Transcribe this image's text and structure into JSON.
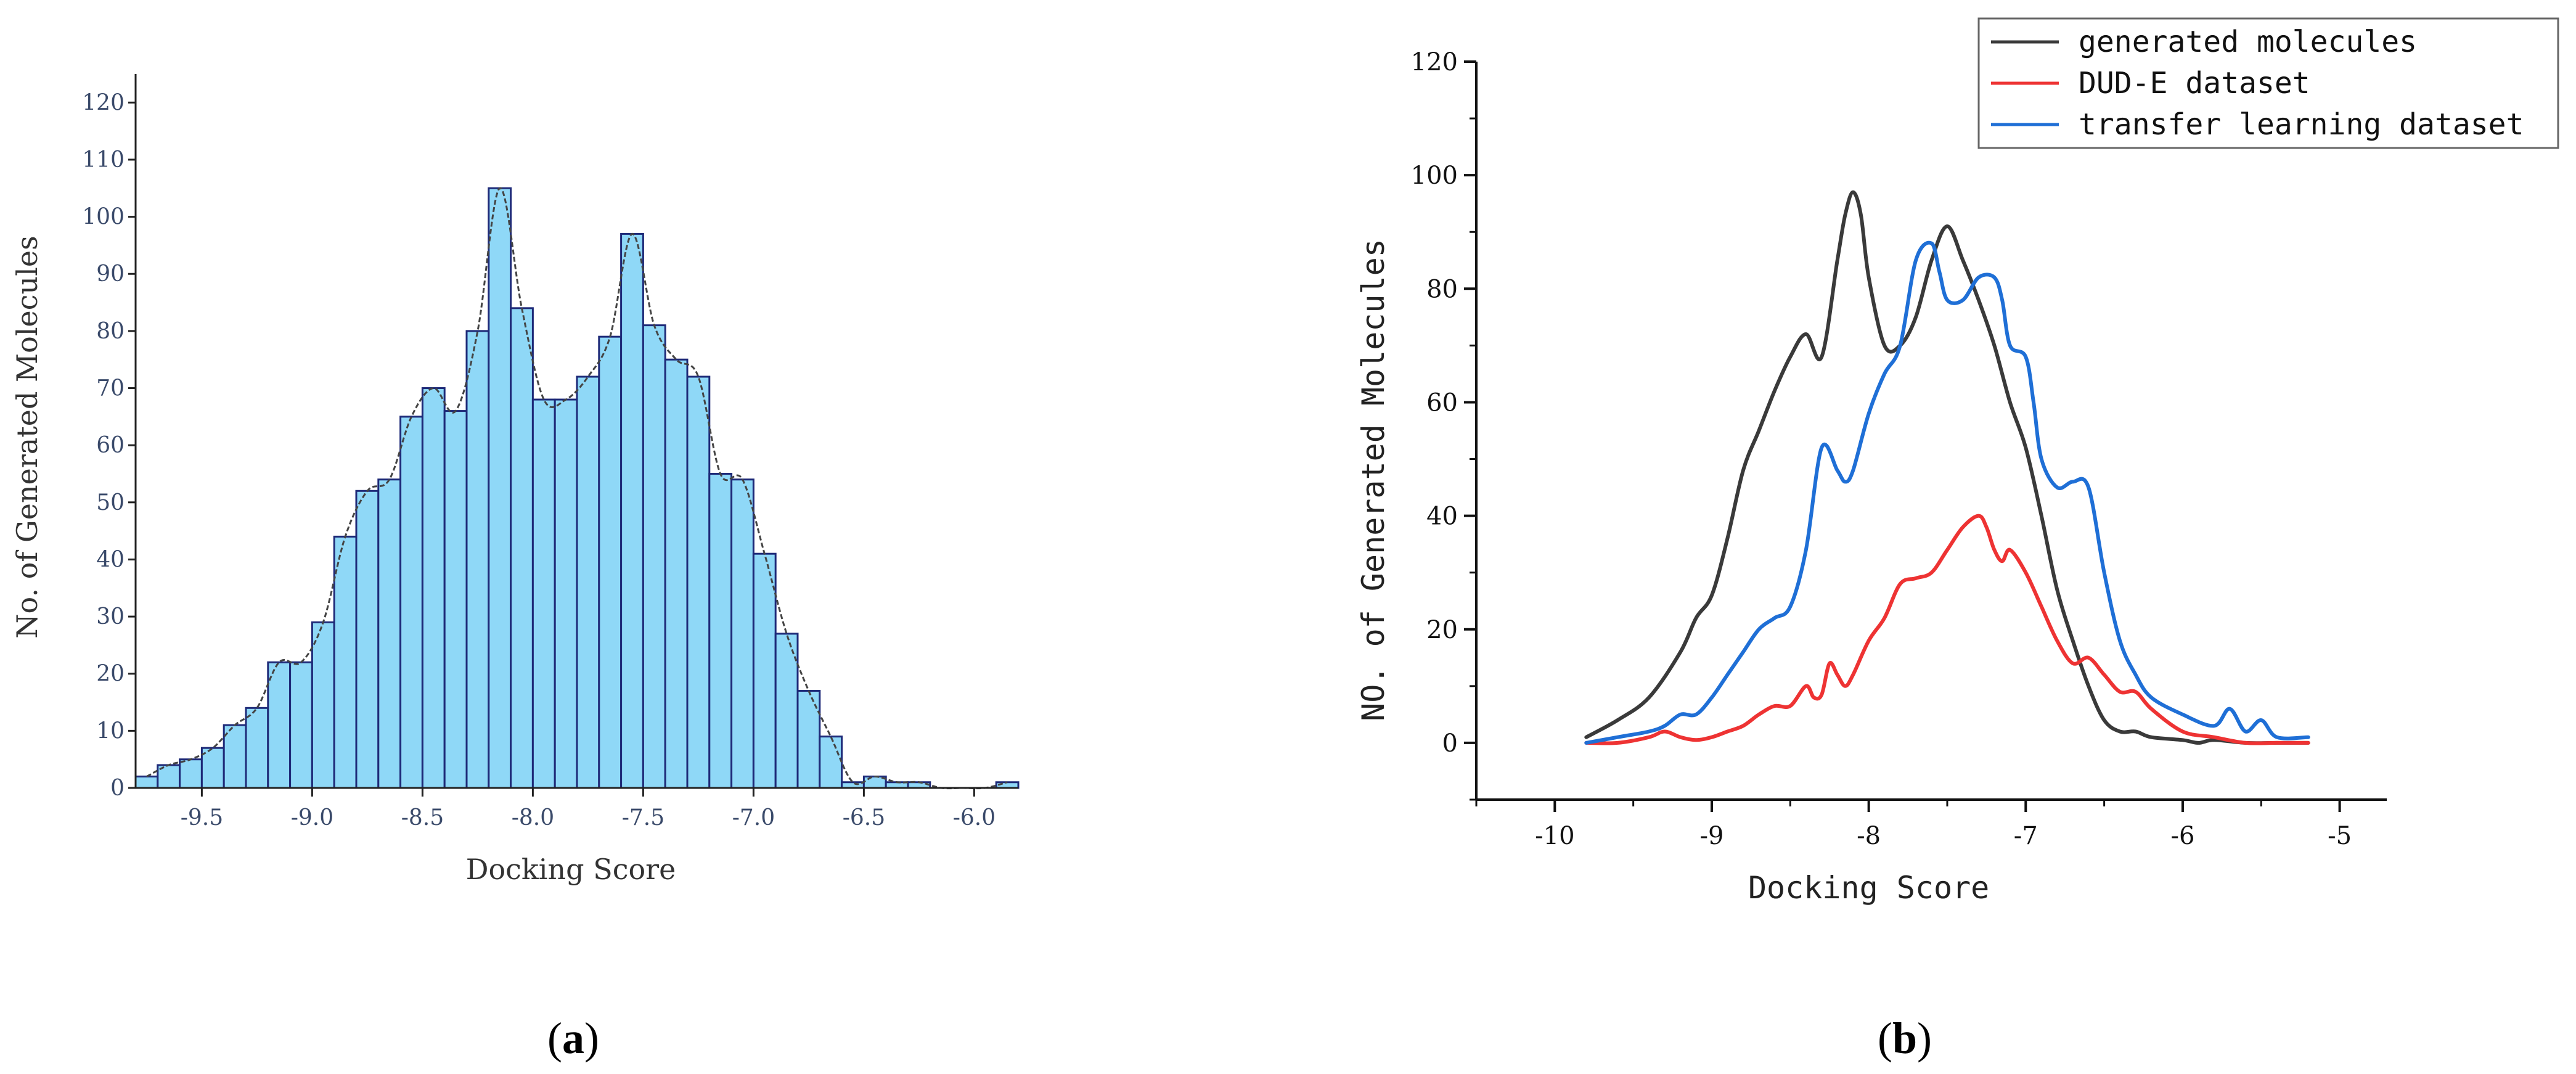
{
  "chart_data": [
    {
      "panel": "a",
      "type": "bar",
      "xlabel": "Docking Score",
      "ylabel": "No. of Generated Molecules",
      "xlim": [
        -9.8,
        -5.8
      ],
      "ylim": [
        0,
        125
      ],
      "xticks": [
        -9.5,
        -9.0,
        -8.5,
        -8.0,
        -7.5,
        -7.0,
        -6.5,
        -6.0
      ],
      "xtick_labels": [
        "-9.5",
        "-9.0",
        "-8.5",
        "-8.0",
        "-7.5",
        "-7.0",
        "-6.5",
        "-6.0"
      ],
      "yticks": [
        0,
        10,
        20,
        30,
        40,
        50,
        60,
        70,
        80,
        90,
        100,
        110,
        120
      ],
      "ytick_labels": [
        "0",
        "10",
        "20",
        "30",
        "40",
        "50",
        "60",
        "70",
        "80",
        "90",
        "100",
        "110",
        "120"
      ],
      "bin_width": 0.1,
      "bin_starts": [
        -9.8,
        -9.7,
        -9.6,
        -9.5,
        -9.4,
        -9.3,
        -9.2,
        -9.1,
        -9.0,
        -8.9,
        -8.8,
        -8.7,
        -8.6,
        -8.5,
        -8.4,
        -8.3,
        -8.2,
        -8.1,
        -8.0,
        -7.9,
        -7.8,
        -7.7,
        -7.6,
        -7.5,
        -7.4,
        -7.3,
        -7.2,
        -7.1,
        -7.0,
        -6.9,
        -6.8,
        -6.7,
        -6.6,
        -6.5,
        -6.4,
        -6.3,
        -6.2,
        -6.1,
        -6.0,
        -5.9
      ],
      "values": [
        2,
        4,
        5,
        7,
        11,
        14,
        22,
        22,
        29,
        44,
        52,
        54,
        65,
        70,
        66,
        80,
        105,
        84,
        68,
        68,
        72,
        79,
        97,
        81,
        75,
        72,
        55,
        54,
        41,
        27,
        17,
        9,
        1,
        2,
        1,
        1,
        0,
        0,
        0,
        1
      ],
      "fill_color": "#8fd8f7",
      "edge_color": "#1e2a78",
      "curve_color": "#444444"
    },
    {
      "panel": "b",
      "type": "line",
      "xlabel": "Docking Score",
      "ylabel": "NO. of Generated Molecules",
      "xlim": [
        -10.5,
        -4.7
      ],
      "ylim": [
        -10,
        120
      ],
      "xticks": [
        -10,
        -9,
        -8,
        -7,
        -6,
        -5
      ],
      "xtick_labels": [
        "-10",
        "-9",
        "-8",
        "-7",
        "-6",
        "-5"
      ],
      "yticks": [
        0,
        20,
        40,
        60,
        80,
        100,
        120
      ],
      "ytick_labels": [
        "0",
        "20",
        "40",
        "60",
        "80",
        "100",
        "120"
      ],
      "series": [
        {
          "name": "generated molecules",
          "color": "#3a3a3a",
          "x": [
            -9.8,
            -9.6,
            -9.4,
            -9.2,
            -9.1,
            -9.0,
            -8.9,
            -8.8,
            -8.7,
            -8.6,
            -8.5,
            -8.4,
            -8.3,
            -8.2,
            -8.15,
            -8.1,
            -8.05,
            -8.0,
            -7.9,
            -7.8,
            -7.7,
            -7.6,
            -7.5,
            -7.4,
            -7.3,
            -7.2,
            -7.1,
            -7.0,
            -6.9,
            -6.8,
            -6.7,
            -6.6,
            -6.5,
            -6.4,
            -6.3,
            -6.2,
            -6.0,
            -5.9,
            -5.8,
            -5.6,
            -5.4,
            -5.2
          ],
          "y": [
            1,
            4,
            8,
            16,
            22,
            26,
            36,
            48,
            55,
            62,
            68,
            72,
            68,
            85,
            93,
            97,
            93,
            82,
            70,
            70,
            75,
            85,
            91,
            85,
            78,
            70,
            60,
            52,
            40,
            27,
            18,
            10,
            4,
            2,
            2,
            1,
            0.5,
            0,
            0.5,
            0,
            0,
            0
          ]
        },
        {
          "name": "DUD-E dataset",
          "color": "#ee3333",
          "x": [
            -9.8,
            -9.6,
            -9.4,
            -9.3,
            -9.2,
            -9.1,
            -9.0,
            -8.9,
            -8.8,
            -8.7,
            -8.6,
            -8.5,
            -8.4,
            -8.35,
            -8.3,
            -8.25,
            -8.2,
            -8.15,
            -8.1,
            -8.0,
            -7.9,
            -7.8,
            -7.7,
            -7.6,
            -7.5,
            -7.4,
            -7.3,
            -7.25,
            -7.2,
            -7.15,
            -7.1,
            -7.0,
            -6.9,
            -6.8,
            -6.7,
            -6.6,
            -6.5,
            -6.4,
            -6.3,
            -6.2,
            -6.0,
            -5.8,
            -5.6,
            -5.4,
            -5.2
          ],
          "y": [
            0,
            0,
            1,
            2,
            1,
            0.5,
            1,
            2,
            3,
            5,
            6.5,
            6.5,
            10,
            8,
            8.5,
            14,
            12,
            10,
            12,
            18,
            22,
            28,
            29,
            30,
            34,
            38,
            40,
            38,
            34,
            32,
            34,
            30,
            24,
            18,
            14,
            15,
            12,
            9,
            9,
            6,
            2,
            1,
            0,
            0,
            0
          ]
        },
        {
          "name": "transfer learning dataset",
          "color": "#1f6fd6",
          "x": [
            -9.8,
            -9.6,
            -9.4,
            -9.3,
            -9.2,
            -9.1,
            -9.0,
            -8.9,
            -8.8,
            -8.7,
            -8.6,
            -8.5,
            -8.4,
            -8.3,
            -8.2,
            -8.15,
            -8.1,
            -8.0,
            -7.9,
            -7.8,
            -7.7,
            -7.6,
            -7.55,
            -7.5,
            -7.4,
            -7.3,
            -7.2,
            -7.15,
            -7.1,
            -7.0,
            -6.95,
            -6.9,
            -6.8,
            -6.7,
            -6.6,
            -6.5,
            -6.4,
            -6.3,
            -6.2,
            -6.0,
            -5.8,
            -5.7,
            -5.6,
            -5.5,
            -5.4,
            -5.2
          ],
          "y": [
            0,
            1,
            2,
            3,
            5,
            5,
            8,
            12,
            16,
            20,
            22,
            24,
            34,
            52,
            48,
            46,
            48,
            58,
            65,
            70,
            85,
            88,
            83,
            78,
            78,
            82,
            82,
            78,
            70,
            68,
            60,
            50,
            45,
            46,
            45,
            30,
            18,
            12,
            8,
            5,
            3,
            6,
            2,
            4,
            1,
            1
          ]
        }
      ]
    }
  ],
  "captions": {
    "a": "a",
    "b": "b"
  }
}
